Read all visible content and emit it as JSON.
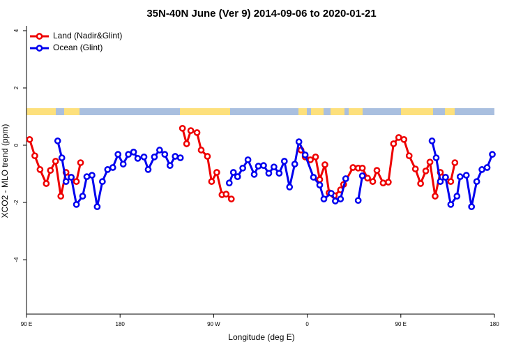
{
  "chart_data": {
    "type": "line",
    "title": "35N-40N June (Ver 9)   2014-09-06 to 2020-01-21",
    "x_label": "Longitude (deg E)",
    "y_label": "XCO2 - MLO trend (ppm)",
    "xlim": [
      90,
      540
    ],
    "xticks": [
      {
        "value": 90,
        "label": "90 E"
      },
      {
        "value": 180,
        "label": "180"
      },
      {
        "value": 270,
        "label": "90 W"
      },
      {
        "value": 360,
        "label": "0"
      },
      {
        "value": 450,
        "label": "90 E"
      },
      {
        "value": 540,
        "label": "180"
      }
    ],
    "ylim": [
      -5.9,
      4.17
    ],
    "yticks": [
      4,
      2,
      0,
      -2,
      -4
    ],
    "legend": "top-left",
    "series": [
      {
        "name": "Land (Nadir&Glint)",
        "color": "#ee0000",
        "x": [
          93,
          98,
          103,
          109,
          113,
          118,
          123,
          128,
          133,
          138,
          142,
          null,
          240,
          244,
          248,
          254,
          258,
          264,
          268,
          273,
          278,
          282,
          287,
          null,
          354,
          358,
          363,
          368,
          372,
          377,
          381,
          386,
          392,
          395,
          404,
          409,
          413,
          418,
          423,
          427,
          433,
          438,
          443,
          448,
          453,
          458,
          464,
          469,
          474,
          478,
          483,
          488,
          493,
          498,
          502
        ],
        "values": [
          0.2,
          -0.37,
          -0.85,
          -1.34,
          -0.88,
          -0.56,
          -1.78,
          -0.95,
          -1.12,
          -1.27,
          -0.61,
          null,
          0.59,
          0.05,
          0.51,
          0.44,
          -0.17,
          -0.39,
          -1.27,
          -0.95,
          -1.73,
          -1.71,
          -1.88,
          null,
          -0.17,
          -0.41,
          -0.51,
          -0.41,
          -1.2,
          -0.68,
          -1.66,
          -1.76,
          -1.56,
          -1.37,
          -0.78,
          -0.8,
          -0.8,
          -1.15,
          -1.27,
          -0.88,
          -1.32,
          -1.29,
          0.05,
          0.27,
          0.2,
          -0.37,
          -0.83,
          -1.34,
          -0.9,
          -0.59,
          -1.78,
          -0.95,
          -1.12,
          -1.27,
          -0.61
        ]
      },
      {
        "name": "Ocean (Glint)",
        "color": "#0000ee",
        "x": [
          120,
          124,
          128,
          133,
          138,
          144,
          148,
          153,
          158,
          163,
          168,
          173,
          178,
          183,
          188,
          193,
          197,
          203,
          207,
          213,
          218,
          223,
          228,
          233,
          238,
          null,
          285,
          289,
          293,
          298,
          303,
          309,
          313,
          318,
          323,
          328,
          333,
          338,
          343,
          348,
          352,
          358,
          366,
          372,
          376,
          383,
          387,
          392,
          397,
          null,
          409,
          413,
          null,
          480,
          484,
          488,
          493,
          498,
          504,
          507,
          513,
          518,
          523,
          528,
          533,
          538
        ],
        "values": [
          0.15,
          -0.44,
          -1.27,
          -1.12,
          -2.07,
          -1.78,
          -1.1,
          -1.05,
          -2.15,
          -1.27,
          -0.85,
          -0.78,
          -0.32,
          -0.66,
          -0.32,
          -0.24,
          -0.46,
          -0.41,
          -0.85,
          -0.41,
          -0.17,
          -0.32,
          -0.71,
          -0.39,
          -0.44,
          null,
          -1.32,
          -0.95,
          -1.1,
          -0.8,
          -0.51,
          -1.02,
          -0.73,
          -0.71,
          -0.98,
          -0.76,
          -0.98,
          -0.56,
          -1.46,
          -0.66,
          0.12,
          -0.34,
          -1.12,
          -1.39,
          -1.88,
          -1.68,
          -1.95,
          -1.88,
          -1.17,
          null,
          -1.93,
          -1.07,
          null,
          0.15,
          -0.44,
          -1.27,
          -1.12,
          -2.07,
          -1.78,
          -1.1,
          -1.05,
          -2.15,
          -1.27,
          -0.85,
          -0.78,
          -0.32
        ]
      }
    ]
  }
}
